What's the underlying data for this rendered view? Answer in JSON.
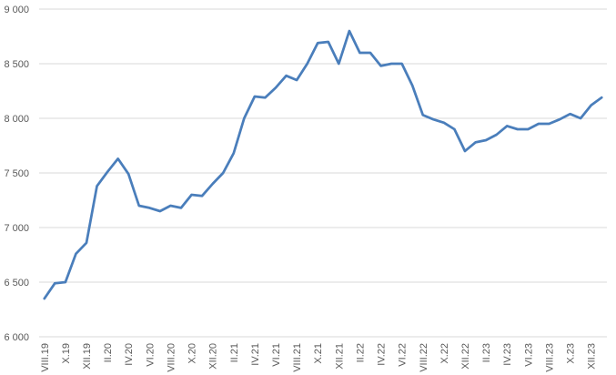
{
  "chart_data": {
    "type": "line",
    "categories": [
      "VIII.19",
      null,
      "X.19",
      null,
      "XII.19",
      null,
      "II.20",
      null,
      "IV.20",
      null,
      "VI.20",
      null,
      "VIII.20",
      null,
      "X.20",
      null,
      "XII.20",
      null,
      "II.21",
      null,
      "IV.21",
      null,
      "VI.21",
      null,
      "VIII.21",
      null,
      "X.21",
      null,
      "XII.21",
      null,
      "II.22",
      null,
      "IV.22",
      null,
      "VI.22",
      null,
      "VIII.22",
      null,
      "X.22",
      null,
      "XII.22",
      null,
      "II.23",
      null,
      "IV.23",
      null,
      "VI.23",
      null,
      "VIII.23",
      null,
      "X.23",
      null,
      "XII.23",
      null
    ],
    "values": [
      6350,
      6490,
      6500,
      6760,
      6860,
      7380,
      7510,
      7630,
      7490,
      7200,
      7180,
      7150,
      7200,
      7180,
      7300,
      7290,
      7400,
      7500,
      7680,
      8000,
      8200,
      8190,
      8280,
      8390,
      8350,
      8500,
      8690,
      8700,
      8500,
      8800,
      8600,
      8600,
      8480,
      8500,
      8500,
      8300,
      8030,
      7990,
      7960,
      7900,
      7700,
      7780,
      7800,
      7850,
      7930,
      7900,
      7900,
      7950,
      7950,
      7990,
      8040,
      8000,
      8120,
      8190
    ],
    "color": "#4a7ebb",
    "ylim": [
      6000,
      9000
    ],
    "yticks": [
      {
        "value": 6000,
        "label": "6 000"
      },
      {
        "value": 6500,
        "label": "6 500"
      },
      {
        "value": 7000,
        "label": "7 000"
      },
      {
        "value": 7500,
        "label": "7 500"
      },
      {
        "value": 8000,
        "label": "8 000"
      },
      {
        "value": 8500,
        "label": "8 500"
      },
      {
        "value": 9000,
        "label": "9 000"
      }
    ],
    "grid": true
  }
}
